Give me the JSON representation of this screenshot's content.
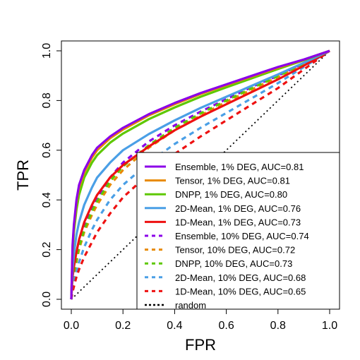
{
  "chart_data": {
    "type": "line",
    "xlabel": "FPR",
    "ylabel": "TPR",
    "xlim": [
      0,
      1
    ],
    "ylim": [
      0,
      1
    ],
    "xticks": [
      "0.0",
      "0.2",
      "0.4",
      "0.6",
      "0.8",
      "1.0"
    ],
    "yticks": [
      "0.0",
      "0.2",
      "0.4",
      "0.6",
      "0.8",
      "1.0"
    ],
    "grid": false,
    "legend_position": "bottom-right",
    "series": [
      {
        "name": "Ensemble, 1% DEG, AUC=0.81",
        "color": "#8B00E8",
        "dash": "solid",
        "x": [
          0,
          0.005,
          0.01,
          0.02,
          0.03,
          0.05,
          0.08,
          0.1,
          0.15,
          0.2,
          0.3,
          0.4,
          0.5,
          0.6,
          0.7,
          0.8,
          0.9,
          1.0
        ],
        "y": [
          0,
          0.22,
          0.3,
          0.4,
          0.46,
          0.52,
          0.58,
          0.61,
          0.655,
          0.69,
          0.745,
          0.79,
          0.83,
          0.865,
          0.9,
          0.935,
          0.965,
          1.0
        ]
      },
      {
        "name": "Tensor, 1% DEG, AUC=0.81",
        "color": "#E88A00",
        "dash": "solid",
        "x": [
          0,
          0.005,
          0.01,
          0.02,
          0.03,
          0.05,
          0.08,
          0.1,
          0.15,
          0.2,
          0.3,
          0.4,
          0.5,
          0.6,
          0.7,
          0.8,
          0.9,
          1.0
        ],
        "y": [
          0,
          0.21,
          0.29,
          0.39,
          0.45,
          0.51,
          0.57,
          0.6,
          0.648,
          0.683,
          0.74,
          0.785,
          0.826,
          0.862,
          0.897,
          0.932,
          0.964,
          1.0
        ]
      },
      {
        "name": "DNPP, 1% DEG, AUC=0.80",
        "color": "#5EC800",
        "dash": "solid",
        "x": [
          0,
          0.005,
          0.01,
          0.02,
          0.03,
          0.05,
          0.08,
          0.1,
          0.15,
          0.2,
          0.3,
          0.4,
          0.5,
          0.6,
          0.7,
          0.8,
          0.9,
          1.0
        ],
        "y": [
          0,
          0.19,
          0.27,
          0.36,
          0.42,
          0.49,
          0.55,
          0.58,
          0.63,
          0.667,
          0.725,
          0.772,
          0.815,
          0.853,
          0.89,
          0.927,
          0.962,
          1.0
        ]
      },
      {
        "name": "2D-Mean, 1% DEG, AUC=0.76",
        "color": "#4A9FE6",
        "dash": "solid",
        "x": [
          0,
          0.005,
          0.01,
          0.02,
          0.03,
          0.05,
          0.08,
          0.1,
          0.15,
          0.2,
          0.3,
          0.4,
          0.5,
          0.6,
          0.7,
          0.8,
          0.9,
          1.0
        ],
        "y": [
          0,
          0.12,
          0.18,
          0.26,
          0.31,
          0.38,
          0.45,
          0.49,
          0.55,
          0.6,
          0.665,
          0.72,
          0.77,
          0.815,
          0.86,
          0.905,
          0.952,
          1.0
        ]
      },
      {
        "name": "1D-Mean, 1% DEG, AUC=0.73",
        "color": "#EE1111",
        "dash": "solid",
        "x": [
          0,
          0.005,
          0.01,
          0.02,
          0.03,
          0.05,
          0.08,
          0.1,
          0.15,
          0.2,
          0.3,
          0.4,
          0.5,
          0.6,
          0.7,
          0.8,
          0.9,
          1.0
        ],
        "y": [
          0,
          0.09,
          0.13,
          0.19,
          0.24,
          0.31,
          0.38,
          0.42,
          0.49,
          0.54,
          0.615,
          0.68,
          0.735,
          0.785,
          0.835,
          0.885,
          0.94,
          1.0
        ]
      },
      {
        "name": "Ensemble, 10% DEG, AUC=0.74",
        "color": "#8B00E8",
        "dash": "dashed",
        "x": [
          0,
          0.005,
          0.01,
          0.02,
          0.03,
          0.05,
          0.08,
          0.1,
          0.15,
          0.2,
          0.3,
          0.4,
          0.5,
          0.6,
          0.7,
          0.8,
          0.9,
          1.0
        ],
        "y": [
          0,
          0.07,
          0.11,
          0.17,
          0.22,
          0.29,
          0.37,
          0.41,
          0.49,
          0.55,
          0.635,
          0.7,
          0.755,
          0.805,
          0.855,
          0.9,
          0.95,
          1.0
        ]
      },
      {
        "name": "Tensor, 10% DEG, AUC=0.72",
        "color": "#E88A00",
        "dash": "dashed",
        "x": [
          0,
          0.005,
          0.01,
          0.02,
          0.03,
          0.05,
          0.08,
          0.1,
          0.15,
          0.2,
          0.3,
          0.4,
          0.5,
          0.6,
          0.7,
          0.8,
          0.9,
          1.0
        ],
        "y": [
          0,
          0.06,
          0.1,
          0.15,
          0.2,
          0.27,
          0.34,
          0.38,
          0.46,
          0.52,
          0.61,
          0.68,
          0.74,
          0.795,
          0.845,
          0.895,
          0.948,
          1.0
        ]
      },
      {
        "name": "DNPP, 10% DEG, AUC=0.73",
        "color": "#5EC800",
        "dash": "dashed",
        "x": [
          0,
          0.005,
          0.01,
          0.02,
          0.03,
          0.05,
          0.08,
          0.1,
          0.15,
          0.2,
          0.3,
          0.4,
          0.5,
          0.6,
          0.7,
          0.8,
          0.9,
          1.0
        ],
        "y": [
          0,
          0.065,
          0.105,
          0.16,
          0.21,
          0.28,
          0.355,
          0.395,
          0.475,
          0.535,
          0.62,
          0.69,
          0.748,
          0.8,
          0.85,
          0.898,
          0.949,
          1.0
        ]
      },
      {
        "name": "2D-Mean, 10% DEG, AUC=0.68",
        "color": "#4A9FE6",
        "dash": "dashed",
        "x": [
          0,
          0.005,
          0.01,
          0.02,
          0.03,
          0.05,
          0.08,
          0.1,
          0.15,
          0.2,
          0.3,
          0.4,
          0.5,
          0.6,
          0.7,
          0.8,
          0.9,
          1.0
        ],
        "y": [
          0,
          0.04,
          0.07,
          0.11,
          0.15,
          0.21,
          0.28,
          0.32,
          0.4,
          0.46,
          0.55,
          0.625,
          0.69,
          0.75,
          0.81,
          0.87,
          0.935,
          1.0
        ]
      },
      {
        "name": "1D-Mean, 10% DEG, AUC=0.65",
        "color": "#EE1111",
        "dash": "dashed",
        "x": [
          0,
          0.005,
          0.01,
          0.02,
          0.03,
          0.05,
          0.08,
          0.1,
          0.15,
          0.2,
          0.3,
          0.4,
          0.5,
          0.6,
          0.7,
          0.8,
          0.9,
          1.0
        ],
        "y": [
          0,
          0.03,
          0.05,
          0.09,
          0.12,
          0.17,
          0.23,
          0.27,
          0.345,
          0.41,
          0.505,
          0.585,
          0.655,
          0.72,
          0.785,
          0.85,
          0.925,
          1.0
        ]
      },
      {
        "name": "random",
        "color": "#000000",
        "dash": "dotted",
        "x": [
          0,
          1
        ],
        "y": [
          0,
          1
        ]
      }
    ]
  }
}
